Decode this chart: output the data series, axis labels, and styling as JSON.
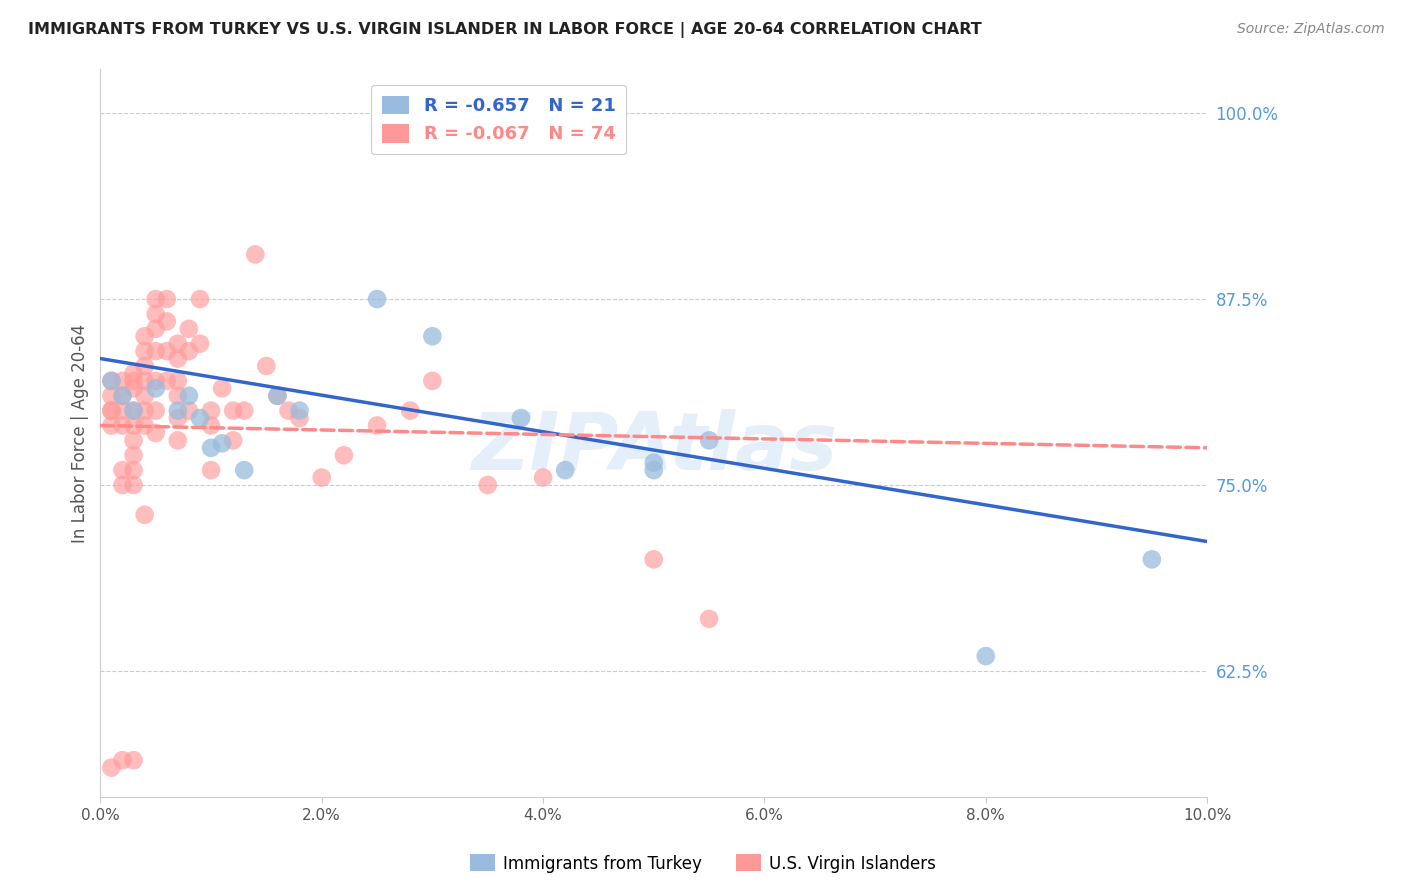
{
  "title": "IMMIGRANTS FROM TURKEY VS U.S. VIRGIN ISLANDER IN LABOR FORCE | AGE 20-64 CORRELATION CHART",
  "source": "Source: ZipAtlas.com",
  "ylabel": "In Labor Force | Age 20-64",
  "xlim": [
    0.0,
    0.1
  ],
  "ylim": [
    0.54,
    1.03
  ],
  "xticks": [
    0.0,
    0.02,
    0.04,
    0.06,
    0.08,
    0.1
  ],
  "xticklabels": [
    "0.0%",
    "2.0%",
    "4.0%",
    "6.0%",
    "8.0%",
    "10.0%"
  ],
  "yticks_right": [
    0.625,
    0.75,
    0.875,
    1.0
  ],
  "yticklabels_right": [
    "62.5%",
    "75.0%",
    "87.5%",
    "100.0%"
  ],
  "blue_R": -0.657,
  "blue_N": 21,
  "pink_R": -0.067,
  "pink_N": 74,
  "blue_color": "#99BBDD",
  "pink_color": "#FF9999",
  "blue_line_color": "#3366CC",
  "pink_line_color": "#FF8888",
  "legend_label_blue": "Immigrants from Turkey",
  "legend_label_pink": "U.S. Virgin Islanders",
  "watermark": "ZIPAtlas",
  "blue_scatter_x": [
    0.001,
    0.002,
    0.003,
    0.005,
    0.007,
    0.008,
    0.009,
    0.01,
    0.011,
    0.013,
    0.016,
    0.018,
    0.025,
    0.03,
    0.038,
    0.042,
    0.05,
    0.055,
    0.08,
    0.095,
    0.05
  ],
  "blue_scatter_y": [
    0.82,
    0.81,
    0.8,
    0.815,
    0.8,
    0.81,
    0.795,
    0.775,
    0.778,
    0.76,
    0.81,
    0.8,
    0.875,
    0.85,
    0.795,
    0.76,
    0.765,
    0.78,
    0.635,
    0.7,
    0.76
  ],
  "pink_scatter_x": [
    0.001,
    0.001,
    0.001,
    0.001,
    0.002,
    0.002,
    0.002,
    0.002,
    0.002,
    0.002,
    0.003,
    0.003,
    0.003,
    0.003,
    0.003,
    0.003,
    0.003,
    0.003,
    0.003,
    0.004,
    0.004,
    0.004,
    0.004,
    0.004,
    0.004,
    0.004,
    0.005,
    0.005,
    0.005,
    0.005,
    0.005,
    0.005,
    0.005,
    0.006,
    0.006,
    0.006,
    0.006,
    0.007,
    0.007,
    0.007,
    0.007,
    0.007,
    0.007,
    0.008,
    0.008,
    0.008,
    0.009,
    0.009,
    0.01,
    0.01,
    0.01,
    0.011,
    0.012,
    0.012,
    0.013,
    0.014,
    0.015,
    0.016,
    0.017,
    0.018,
    0.02,
    0.022,
    0.025,
    0.028,
    0.03,
    0.035,
    0.04,
    0.05,
    0.055,
    0.002,
    0.003,
    0.004,
    0.001,
    0.001
  ],
  "pink_scatter_y": [
    0.8,
    0.79,
    0.81,
    0.82,
    0.82,
    0.81,
    0.8,
    0.79,
    0.76,
    0.75,
    0.825,
    0.82,
    0.815,
    0.8,
    0.79,
    0.78,
    0.77,
    0.76,
    0.75,
    0.85,
    0.84,
    0.83,
    0.82,
    0.81,
    0.8,
    0.79,
    0.875,
    0.865,
    0.855,
    0.84,
    0.82,
    0.8,
    0.785,
    0.875,
    0.86,
    0.84,
    0.82,
    0.845,
    0.835,
    0.82,
    0.81,
    0.795,
    0.78,
    0.855,
    0.84,
    0.8,
    0.875,
    0.845,
    0.8,
    0.79,
    0.76,
    0.815,
    0.8,
    0.78,
    0.8,
    0.905,
    0.83,
    0.81,
    0.8,
    0.795,
    0.755,
    0.77,
    0.79,
    0.8,
    0.82,
    0.75,
    0.755,
    0.7,
    0.66,
    0.565,
    0.565,
    0.73,
    0.56,
    0.8
  ],
  "blue_line_x0": 0.0,
  "blue_line_y0": 0.835,
  "blue_line_x1": 0.1,
  "blue_line_y1": 0.712,
  "pink_line_x0": 0.0,
  "pink_line_y0": 0.79,
  "pink_line_x1": 0.1,
  "pink_line_y1": 0.775
}
